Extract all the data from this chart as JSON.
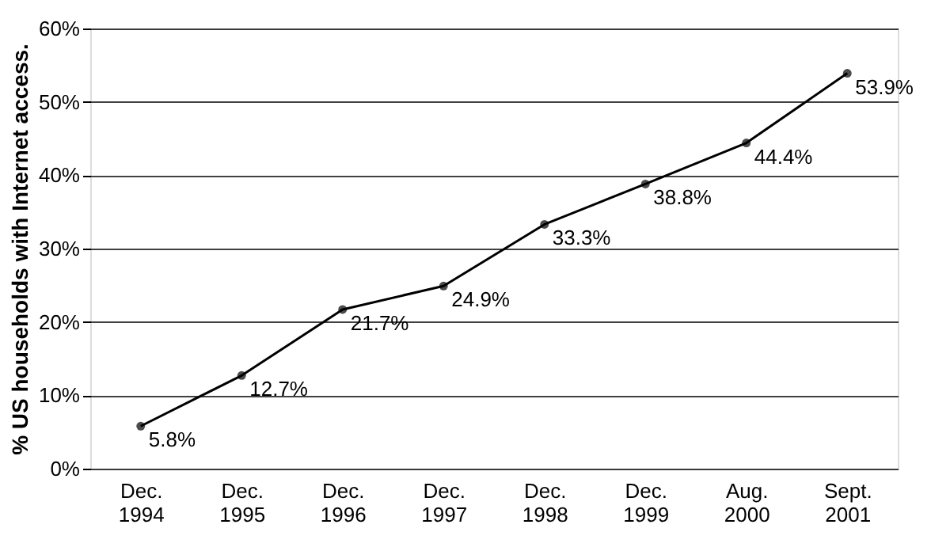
{
  "chart_data": {
    "type": "line",
    "ylabel": "% US households with Internet access.",
    "categories": [
      "Dec. 1994",
      "Dec. 1995",
      "Dec. 1996",
      "Dec. 1997",
      "Dec. 1998",
      "Dec. 1999",
      "Aug. 2000",
      "Sept. 2001"
    ],
    "series": [
      {
        "color": "#000000",
        "values": [
          5.8,
          12.7,
          21.7,
          24.9,
          33.3,
          38.8,
          44.4,
          53.9
        ],
        "value_labels": [
          "5.8%",
          "12.7%",
          "21.7%",
          "24.9%",
          "33.3%",
          "38.8%",
          "44.4%",
          "53.9%"
        ]
      }
    ],
    "ylim": [
      0,
      60
    ],
    "yticks": [
      {
        "value": 0,
        "label": "0%"
      },
      {
        "value": 10,
        "label": "10%"
      },
      {
        "value": 20,
        "label": "20%"
      },
      {
        "value": 30,
        "label": "30%"
      },
      {
        "value": 40,
        "label": "40%"
      },
      {
        "value": 50,
        "label": "50%"
      },
      {
        "value": 60,
        "label": "60%"
      }
    ],
    "grid": "y",
    "marker": "circle",
    "line_style": "solid"
  }
}
